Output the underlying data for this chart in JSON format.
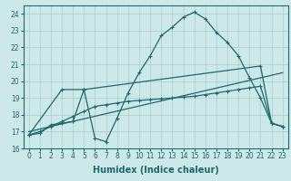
{
  "xlabel": "Humidex (Indice chaleur)",
  "xlim": [
    -0.5,
    23.5
  ],
  "ylim": [
    16,
    24.5
  ],
  "yticks": [
    16,
    17,
    18,
    19,
    20,
    21,
    22,
    23,
    24
  ],
  "xticks": [
    0,
    1,
    2,
    3,
    4,
    5,
    6,
    7,
    8,
    9,
    10,
    11,
    12,
    13,
    14,
    15,
    16,
    17,
    18,
    19,
    20,
    21,
    22,
    23
  ],
  "bg_color": "#cce8e8",
  "grid_color": "#aacccc",
  "line_color": "#1a6b6b",
  "line1_x": [
    0,
    1,
    2,
    3,
    4,
    5,
    6,
    7,
    8,
    9,
    10,
    11,
    12,
    13,
    14,
    15,
    16,
    17,
    18,
    19,
    20,
    21,
    22,
    23
  ],
  "line1_y": [
    16.8,
    16.9,
    17.4,
    17.5,
    17.6,
    19.5,
    16.6,
    16.4,
    17.8,
    19.3,
    20.5,
    21.5,
    22.7,
    23.2,
    23.8,
    24.1,
    23.7,
    22.9,
    22.3,
    21.5,
    20.2,
    19.0,
    17.5,
    17.3
  ],
  "line2_x": [
    0,
    1,
    2,
    3,
    4,
    5,
    6,
    7,
    8,
    9,
    10,
    11,
    12,
    13,
    14,
    15,
    16,
    17,
    18,
    19,
    20,
    21,
    22,
    23
  ],
  "line2_y": [
    16.8,
    17.0,
    17.3,
    17.6,
    17.9,
    18.2,
    18.5,
    18.6,
    18.7,
    18.8,
    18.85,
    18.9,
    18.95,
    19.0,
    19.05,
    19.1,
    19.2,
    19.3,
    19.4,
    19.5,
    19.6,
    19.7,
    17.5,
    17.3
  ],
  "line3_x": [
    0,
    3,
    5,
    21,
    22,
    23
  ],
  "line3_y": [
    16.8,
    19.5,
    19.5,
    20.9,
    17.5,
    17.3
  ],
  "line4_x": [
    0,
    23
  ],
  "line4_y": [
    17.0,
    20.5
  ]
}
